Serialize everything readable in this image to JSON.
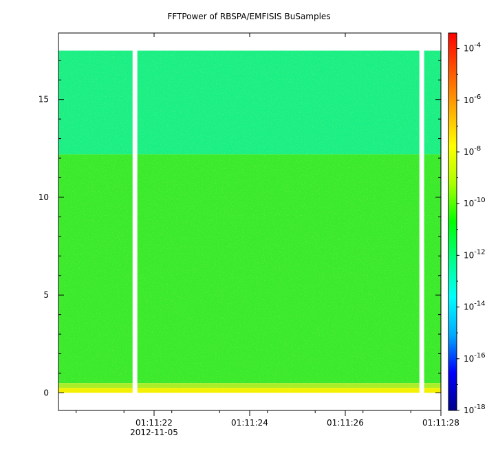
{
  "chart_data": {
    "type": "heatmap",
    "title": "FFTPower of RBSPA/EMFISIS  BuSamples",
    "xlabel": "",
    "ylabel": "",
    "x_ticks": [
      {
        "t": 22,
        "label": "01:11:22"
      },
      {
        "t": 24,
        "label": "01:11:24"
      },
      {
        "t": 26,
        "label": "01:11:26"
      },
      {
        "t": 28,
        "label": "01:11:28"
      }
    ],
    "x_minor_ticks": [
      20.37,
      21.37,
      22.37,
      23.37,
      24.37,
      25.37,
      26.37,
      27.37,
      28.37
    ],
    "x_date_label": "2012-11-05",
    "xlim_seconds": [
      20.0,
      28.0
    ],
    "y_ticks": [
      0,
      5,
      10,
      15
    ],
    "ylim": [
      -0.9,
      18.4
    ],
    "data_yrange": [
      0,
      17.5
    ],
    "gaps_seconds": [
      [
        21.55,
        21.65
      ],
      [
        27.55,
        27.65
      ]
    ],
    "colorbar": {
      "scale": "log",
      "range_exponents": [
        -18,
        -3.4
      ],
      "tick_exponents": [
        -18,
        -16,
        -14,
        -12,
        -10,
        -8,
        -6,
        -4
      ],
      "tick_base": "10",
      "colors": [
        "#00008b",
        "#0000ff",
        "#00aaff",
        "#00ffff",
        "#00ff88",
        "#00ff00",
        "#aaff00",
        "#ffff00",
        "#ffaa00",
        "#ff5500",
        "#ff0000"
      ]
    },
    "bands": [
      {
        "y": [
          12.2,
          17.5
        ],
        "level_exponent": -13,
        "color": "#1aef86"
      },
      {
        "y": [
          0.5,
          12.2
        ],
        "level_exponent": -10.5,
        "color": "#3aea2c"
      },
      {
        "y": [
          0.25,
          0.5
        ],
        "level_exponent": -9,
        "color": "#a8ee28"
      },
      {
        "y": [
          0.0,
          0.25
        ],
        "level_exponent": -8,
        "color": "#f4f000"
      }
    ]
  }
}
